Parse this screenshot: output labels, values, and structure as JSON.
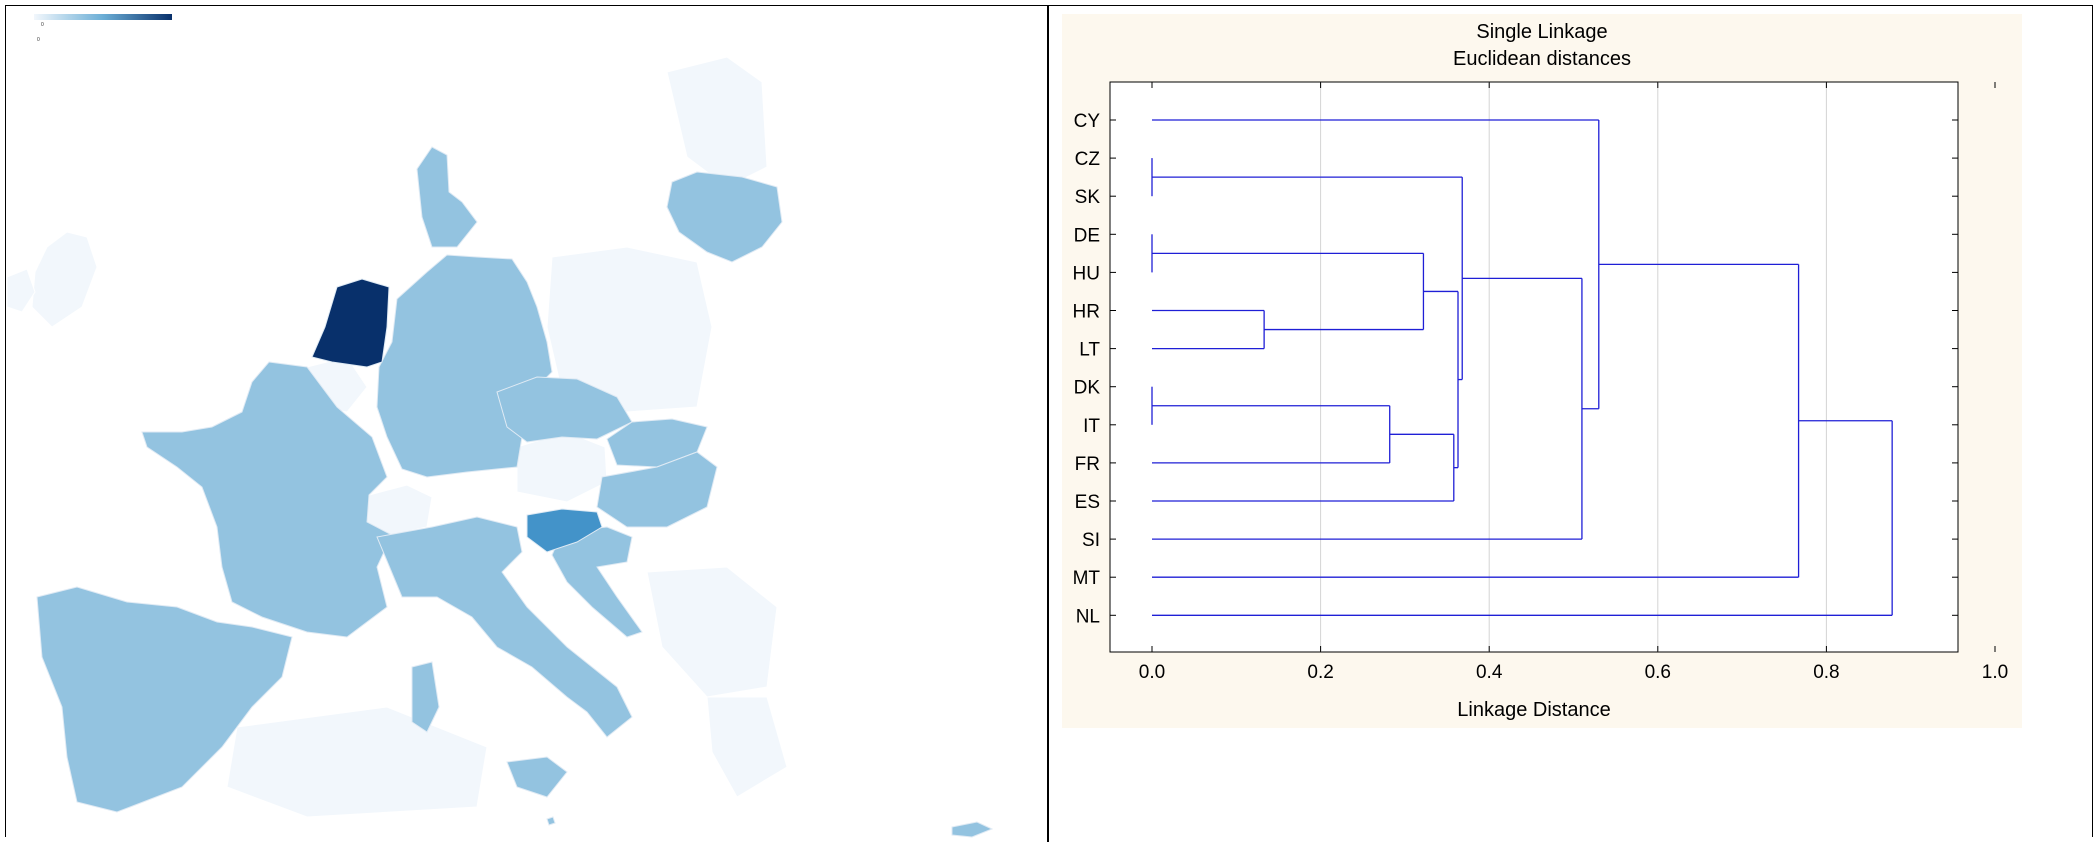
{
  "map": {
    "legend": {
      "min_label": "0",
      "max_label": "0"
    },
    "colors": {
      "low": "#93c3e0",
      "high": "#08306b",
      "mid": "#4393c9",
      "no_data": "#f2f7fc",
      "border": "#dfeaf4"
    },
    "countries": [
      {
        "name": "NL",
        "level": "high"
      },
      {
        "name": "SI",
        "level": "mid"
      },
      {
        "name": "DK",
        "level": "low"
      },
      {
        "name": "DE",
        "level": "low"
      },
      {
        "name": "FR",
        "level": "low"
      },
      {
        "name": "ES",
        "level": "low"
      },
      {
        "name": "IT",
        "level": "low"
      },
      {
        "name": "CZ",
        "level": "low"
      },
      {
        "name": "SK",
        "level": "low"
      },
      {
        "name": "HU",
        "level": "low"
      },
      {
        "name": "HR",
        "level": "low"
      },
      {
        "name": "LT",
        "level": "low"
      },
      {
        "name": "CY",
        "level": "low"
      },
      {
        "name": "MT",
        "level": "low"
      }
    ]
  },
  "chart_data": {
    "type": "dendrogram",
    "title": "Single Linkage",
    "subtitle": "Euclidean distances",
    "xlabel": "Linkage Distance",
    "xlim": [
      0,
      1
    ],
    "xticks": [
      "0.0",
      "0.2",
      "0.4",
      "0.6",
      "0.8",
      "1.0"
    ],
    "grid": true,
    "leaves": [
      "CY",
      "CZ",
      "SK",
      "DE",
      "HU",
      "HR",
      "LT",
      "DK",
      "IT",
      "FR",
      "ES",
      "SI",
      "MT",
      "NL"
    ],
    "merges": [
      {
        "a": "CZ",
        "b": "SK",
        "distance": 0.0
      },
      {
        "a": "DE",
        "b": "HU",
        "distance": 0.0
      },
      {
        "a": "DK",
        "b": "IT",
        "distance": 0.0
      },
      {
        "a": "HR",
        "b": "LT",
        "distance": 0.133
      },
      {
        "a": "DK+IT",
        "b": "FR",
        "distance": 0.282
      },
      {
        "a": "DE+HU",
        "b": "HR+LT",
        "distance": 0.322
      },
      {
        "a": "DK+IT+FR",
        "b": "ES",
        "distance": 0.358
      },
      {
        "a": "DE+HU+HR+LT",
        "b": "DK+IT+FR+ES",
        "distance": 0.363
      },
      {
        "a": "CZ+SK",
        "b": "DE+HU+HR+LT+DK+IT+FR+ES",
        "distance": 0.368
      },
      {
        "a": "CZ+SK+DE+HU+HR+LT+DK+IT+FR+ES",
        "b": "SI",
        "distance": 0.51
      },
      {
        "a": "CY",
        "b": "CZ..SI",
        "distance": 0.53
      },
      {
        "a": "CY..SI",
        "b": "MT",
        "distance": 0.767
      },
      {
        "a": "CY..MT",
        "b": "NL",
        "distance": 0.878
      }
    ],
    "line_color": "#1f1fd6"
  }
}
